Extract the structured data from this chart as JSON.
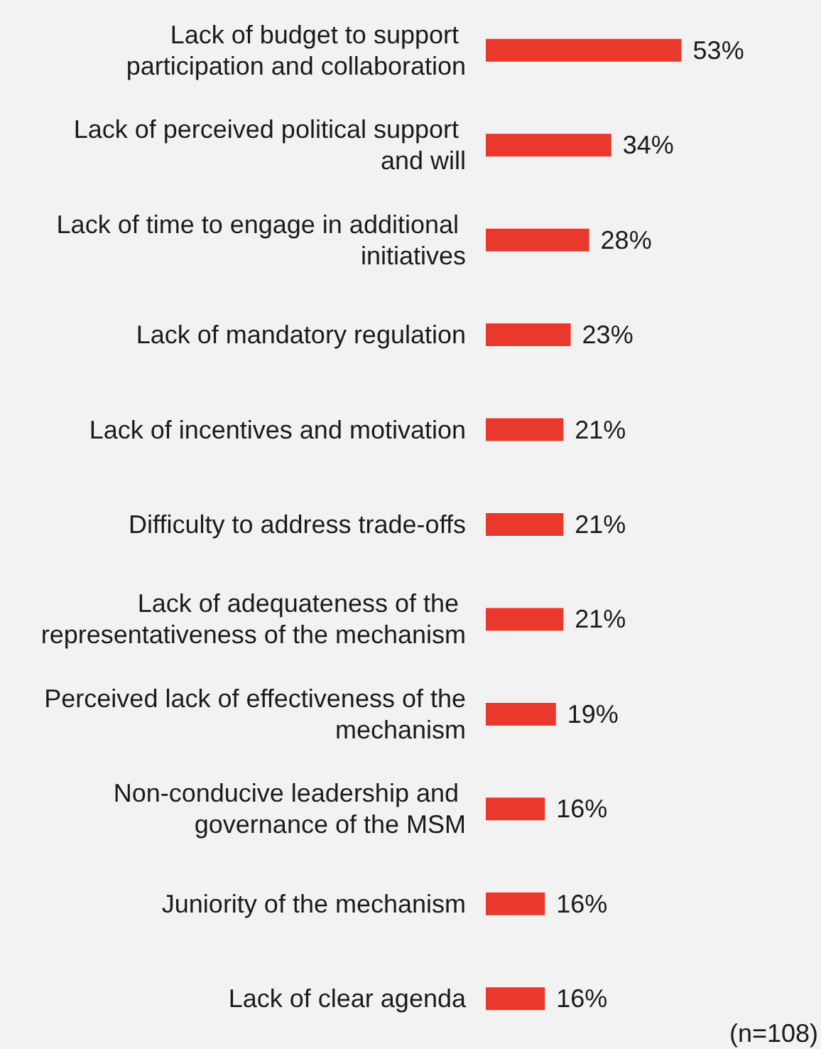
{
  "chart_data": {
    "type": "bar",
    "orientation": "horizontal",
    "categories": [
      "Lack of budget to support participation and collaboration",
      "Lack of perceived political support and will",
      "Lack of time to engage in additional initiatives",
      "Lack of mandatory regulation",
      "Lack of incentives and motivation",
      "Difficulty to address trade-offs",
      "Lack of adequateness of the representativeness of the mechanism",
      "Perceived lack of effectiveness of the mechanism",
      "Non-conducive leadership and governance of the MSM",
      "Juniority of the mechanism",
      "Lack of clear agenda"
    ],
    "values": [
      53,
      34,
      28,
      23,
      21,
      21,
      21,
      19,
      16,
      16,
      16
    ],
    "value_labels": [
      "53%",
      "34%",
      "28%",
      "23%",
      "21%",
      "21%",
      "21%",
      "19%",
      "16%",
      "16%",
      "16%"
    ],
    "color": "#e8392c",
    "annotations": [
      "(n=108)"
    ]
  }
}
